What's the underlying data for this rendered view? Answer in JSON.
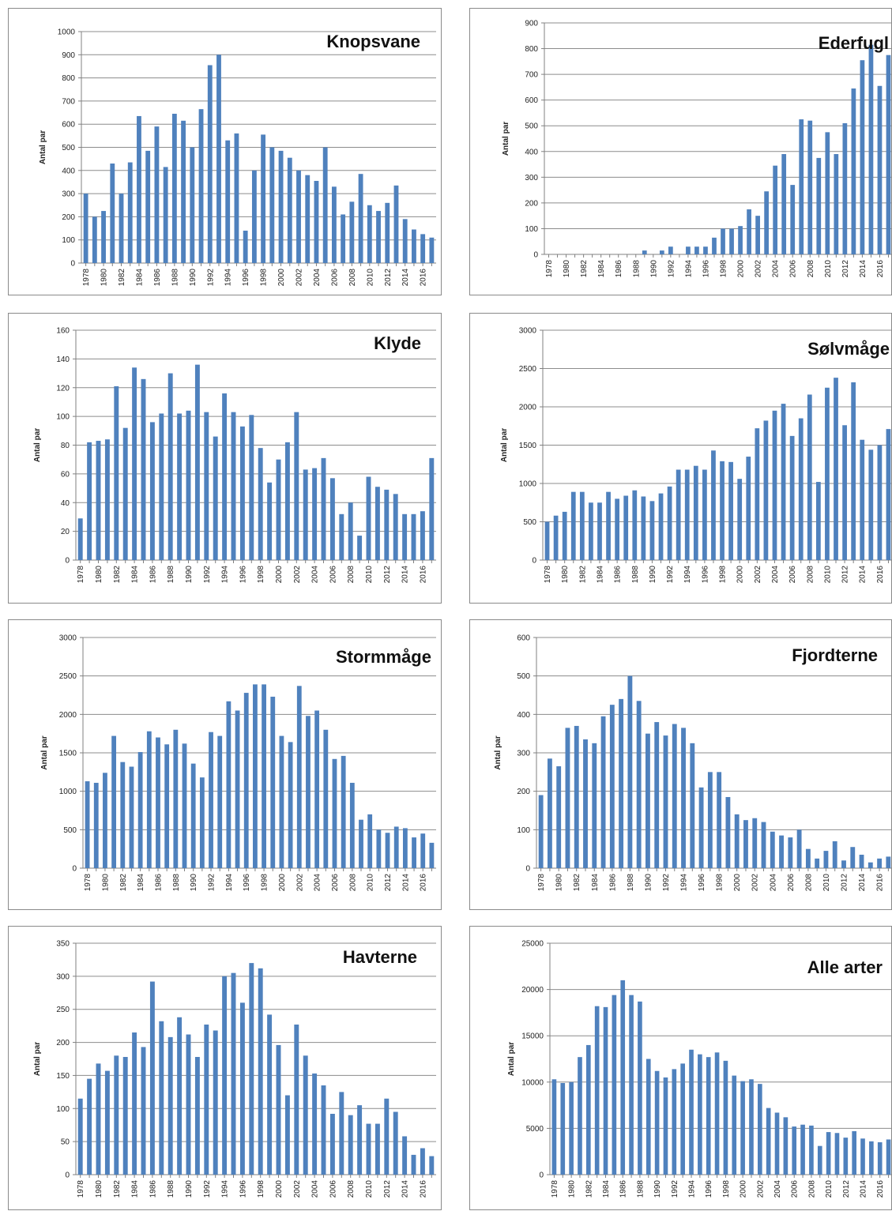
{
  "colors": {
    "bar": "#4f81bd",
    "grid": "#8c8c8c",
    "axis": "#808080",
    "text": "#222222",
    "border": "#8a8a8a"
  },
  "chart_data": [
    {
      "type": "bar",
      "title": "Knopsvane",
      "ylabel": "Antal par",
      "xlabel": "",
      "ylim": [
        0,
        1000
      ],
      "yticks": [
        0,
        100,
        200,
        300,
        400,
        500,
        600,
        700,
        800,
        900,
        1000
      ],
      "grid": true,
      "x": [
        1978,
        1979,
        1980,
        1981,
        1982,
        1983,
        1984,
        1985,
        1986,
        1987,
        1988,
        1989,
        1990,
        1991,
        1992,
        1993,
        1994,
        1995,
        1996,
        1997,
        1998,
        1999,
        2000,
        2001,
        2002,
        2003,
        2004,
        2005,
        2006,
        2007,
        2008,
        2009,
        2010,
        2011,
        2012,
        2013,
        2014,
        2015,
        2016,
        2017
      ],
      "xticklabels": [
        "1978",
        "1980",
        "1982",
        "1984",
        "1986",
        "1988",
        "1990",
        "1992",
        "1994",
        "1996",
        "1998",
        "2000",
        "2002",
        "2004",
        "2006",
        "2008",
        "2010",
        "2012",
        "2014",
        "2016"
      ],
      "values": [
        300,
        200,
        225,
        430,
        300,
        435,
        635,
        485,
        590,
        415,
        645,
        615,
        500,
        665,
        855,
        900,
        530,
        560,
        140,
        400,
        555,
        500,
        485,
        455,
        400,
        380,
        355,
        500,
        330,
        210,
        265,
        385,
        250,
        225,
        260,
        335,
        190,
        145,
        125,
        110
      ]
    },
    {
      "type": "bar",
      "title": "Ederfugl",
      "ylabel": "Antal par",
      "xlabel": "",
      "ylim": [
        0,
        900
      ],
      "yticks": [
        0,
        100,
        200,
        300,
        400,
        500,
        600,
        700,
        800,
        900
      ],
      "grid": true,
      "x": [
        1978,
        1979,
        1980,
        1981,
        1982,
        1983,
        1984,
        1985,
        1986,
        1987,
        1988,
        1989,
        1990,
        1991,
        1992,
        1993,
        1994,
        1995,
        1996,
        1997,
        1998,
        1999,
        2000,
        2001,
        2002,
        2003,
        2004,
        2005,
        2006,
        2007,
        2008,
        2009,
        2010,
        2011,
        2012,
        2013,
        2014,
        2015,
        2016,
        2017
      ],
      "xticklabels": [
        "1978",
        "1980",
        "1982",
        "1984",
        "1986",
        "1988",
        "1990",
        "1992",
        "1994",
        "1996",
        "1998",
        "2000",
        "2002",
        "2004",
        "2006",
        "2008",
        "2010",
        "2012",
        "2014",
        "2016"
      ],
      "values": [
        0,
        0,
        0,
        0,
        0,
        0,
        0,
        0,
        0,
        0,
        0,
        15,
        0,
        15,
        30,
        0,
        30,
        30,
        30,
        65,
        100,
        100,
        110,
        175,
        150,
        245,
        345,
        390,
        270,
        525,
        520,
        375,
        475,
        390,
        510,
        645,
        755,
        815,
        655,
        775
      ]
    },
    {
      "type": "bar",
      "title": "Klyde",
      "ylabel": "Antal par",
      "xlabel": "",
      "ylim": [
        0,
        160
      ],
      "yticks": [
        0,
        20,
        40,
        60,
        80,
        100,
        120,
        140,
        160
      ],
      "grid": true,
      "x": [
        1978,
        1979,
        1980,
        1981,
        1982,
        1983,
        1984,
        1985,
        1986,
        1987,
        1988,
        1989,
        1990,
        1991,
        1992,
        1993,
        1994,
        1995,
        1996,
        1997,
        1998,
        1999,
        2000,
        2001,
        2002,
        2003,
        2004,
        2005,
        2006,
        2007,
        2008,
        2009,
        2010,
        2011,
        2012,
        2013,
        2014,
        2015,
        2016,
        2017
      ],
      "xticklabels": [
        "1978",
        "1980",
        "1982",
        "1984",
        "1986",
        "1988",
        "1990",
        "1992",
        "1994",
        "1996",
        "1998",
        "2000",
        "2002",
        "2004",
        "2006",
        "2008",
        "2010",
        "2012",
        "2014",
        "2016"
      ],
      "values": [
        29,
        82,
        83,
        84,
        121,
        92,
        134,
        126,
        96,
        102,
        130,
        102,
        104,
        136,
        103,
        86,
        116,
        103,
        93,
        101,
        78,
        54,
        70,
        82,
        103,
        63,
        64,
        71,
        57,
        32,
        40,
        17,
        58,
        51,
        49,
        46,
        32,
        32,
        34,
        71
      ]
    },
    {
      "type": "bar",
      "title": "Sølvmåge",
      "ylabel": "Antal par",
      "xlabel": "",
      "ylim": [
        0,
        3000
      ],
      "yticks": [
        0,
        500,
        1000,
        1500,
        2000,
        2500,
        3000
      ],
      "grid": true,
      "x": [
        1978,
        1979,
        1980,
        1981,
        1982,
        1983,
        1984,
        1985,
        1986,
        1987,
        1988,
        1989,
        1990,
        1991,
        1992,
        1993,
        1994,
        1995,
        1996,
        1997,
        1998,
        1999,
        2000,
        2001,
        2002,
        2003,
        2004,
        2005,
        2006,
        2007,
        2008,
        2009,
        2010,
        2011,
        2012,
        2013,
        2014,
        2015,
        2016,
        2017
      ],
      "xticklabels": [
        "1978",
        "1980",
        "1982",
        "1984",
        "1986",
        "1988",
        "1990",
        "1992",
        "1994",
        "1996",
        "1998",
        "2000",
        "2002",
        "2004",
        "2006",
        "2008",
        "2010",
        "2012",
        "2014",
        "2016"
      ],
      "values": [
        500,
        580,
        630,
        890,
        890,
        750,
        750,
        890,
        800,
        840,
        910,
        830,
        770,
        870,
        960,
        1180,
        1180,
        1230,
        1180,
        1430,
        1290,
        1280,
        1060,
        1350,
        1720,
        1820,
        1950,
        2040,
        1620,
        1850,
        2160,
        1020,
        2250,
        2380,
        1760,
        2320,
        1570,
        1440,
        1500,
        1710
      ]
    },
    {
      "type": "bar",
      "title": "Stormmåge",
      "ylabel": "Antal par",
      "xlabel": "",
      "ylim": [
        0,
        3000
      ],
      "yticks": [
        0,
        500,
        1000,
        1500,
        2000,
        2500,
        3000
      ],
      "grid": true,
      "x": [
        1978,
        1979,
        1980,
        1981,
        1982,
        1983,
        1984,
        1985,
        1986,
        1987,
        1988,
        1989,
        1990,
        1991,
        1992,
        1993,
        1994,
        1995,
        1996,
        1997,
        1998,
        1999,
        2000,
        2001,
        2002,
        2003,
        2004,
        2005,
        2006,
        2007,
        2008,
        2009,
        2010,
        2011,
        2012,
        2013,
        2014,
        2015,
        2016,
        2017
      ],
      "xticklabels": [
        "1978",
        "1980",
        "1982",
        "1984",
        "1986",
        "1988",
        "1990",
        "1992",
        "1994",
        "1996",
        "1998",
        "2000",
        "2002",
        "2004",
        "2006",
        "2008",
        "2010",
        "2012",
        "2014",
        "2016"
      ],
      "values": [
        1130,
        1110,
        1240,
        1720,
        1380,
        1320,
        1510,
        1780,
        1700,
        1610,
        1800,
        1620,
        1360,
        1180,
        1770,
        1720,
        2170,
        2050,
        2280,
        2390,
        2390,
        2230,
        1720,
        1640,
        2370,
        1980,
        2050,
        1800,
        1420,
        1460,
        1110,
        630,
        700,
        500,
        460,
        540,
        520,
        400,
        450,
        330
      ]
    },
    {
      "type": "bar",
      "title": "Fjordterne",
      "ylabel": "Antal par",
      "xlabel": "",
      "ylim": [
        0,
        600
      ],
      "yticks": [
        0,
        100,
        200,
        300,
        400,
        500,
        600
      ],
      "grid": true,
      "x": [
        1978,
        1979,
        1980,
        1981,
        1982,
        1983,
        1984,
        1985,
        1986,
        1987,
        1988,
        1989,
        1990,
        1991,
        1992,
        1993,
        1994,
        1995,
        1996,
        1997,
        1998,
        1999,
        2000,
        2001,
        2002,
        2003,
        2004,
        2005,
        2006,
        2007,
        2008,
        2009,
        2010,
        2011,
        2012,
        2013,
        2014,
        2015,
        2016,
        2017
      ],
      "xticklabels": [
        "1978",
        "1980",
        "1982",
        "1984",
        "1986",
        "1988",
        "1990",
        "1992",
        "1994",
        "1996",
        "1998",
        "2000",
        "2002",
        "2004",
        "2006",
        "2008",
        "2010",
        "2012",
        "2014",
        "2016"
      ],
      "values": [
        190,
        285,
        265,
        365,
        370,
        335,
        325,
        395,
        425,
        440,
        500,
        435,
        350,
        380,
        345,
        375,
        365,
        325,
        210,
        250,
        250,
        185,
        140,
        125,
        130,
        120,
        95,
        85,
        80,
        100,
        50,
        25,
        45,
        70,
        20,
        55,
        35,
        15,
        25,
        30
      ]
    },
    {
      "type": "bar",
      "title": "Havterne",
      "ylabel": "Antal par",
      "xlabel": "",
      "ylim": [
        0,
        350
      ],
      "yticks": [
        0,
        50,
        100,
        150,
        200,
        250,
        300,
        350
      ],
      "grid": true,
      "x": [
        1978,
        1979,
        1980,
        1981,
        1982,
        1983,
        1984,
        1985,
        1986,
        1987,
        1988,
        1989,
        1990,
        1991,
        1992,
        1993,
        1994,
        1995,
        1996,
        1997,
        1998,
        1999,
        2000,
        2001,
        2002,
        2003,
        2004,
        2005,
        2006,
        2007,
        2008,
        2009,
        2010,
        2011,
        2012,
        2013,
        2014,
        2015,
        2016,
        2017
      ],
      "xticklabels": [
        "1978",
        "1980",
        "1982",
        "1984",
        "1986",
        "1988",
        "1990",
        "1992",
        "1994",
        "1996",
        "1998",
        "2000",
        "2002",
        "2004",
        "2006",
        "2008",
        "2010",
        "2012",
        "2014",
        "2016"
      ],
      "values": [
        115,
        145,
        168,
        157,
        180,
        178,
        215,
        193,
        292,
        232,
        208,
        238,
        212,
        178,
        227,
        218,
        300,
        305,
        260,
        320,
        312,
        242,
        196,
        120,
        227,
        180,
        153,
        135,
        92,
        125,
        90,
        105,
        77,
        77,
        115,
        95,
        58,
        30,
        40,
        28
      ]
    },
    {
      "type": "bar",
      "title": "Alle arter",
      "ylabel": "Antal par",
      "xlabel": "",
      "ylim": [
        0,
        25000
      ],
      "yticks": [
        0,
        5000,
        10000,
        15000,
        20000,
        25000
      ],
      "grid": true,
      "x": [
        1978,
        1979,
        1980,
        1981,
        1982,
        1983,
        1984,
        1985,
        1986,
        1987,
        1988,
        1989,
        1990,
        1991,
        1992,
        1993,
        1994,
        1995,
        1996,
        1997,
        1998,
        1999,
        2000,
        2001,
        2002,
        2003,
        2004,
        2005,
        2006,
        2007,
        2008,
        2009,
        2010,
        2011,
        2012,
        2013,
        2014,
        2015,
        2016,
        2017
      ],
      "xticklabels": [
        "1978",
        "1980",
        "1982",
        "1984",
        "1986",
        "1988",
        "1990",
        "1992",
        "1994",
        "1996",
        "1998",
        "2000",
        "2002",
        "2004",
        "2006",
        "2008",
        "2010",
        "2012",
        "2014",
        "2016"
      ],
      "values": [
        10300,
        9900,
        10000,
        12700,
        14000,
        18200,
        18100,
        19400,
        21000,
        19400,
        18700,
        12500,
        11200,
        10500,
        11400,
        12000,
        13500,
        13000,
        12700,
        13200,
        12300,
        10700,
        10100,
        10300,
        9800,
        7200,
        6700,
        6200,
        5200,
        5400,
        5300,
        3100,
        4600,
        4500,
        4000,
        4700,
        3900,
        3600,
        3500,
        3800
      ]
    }
  ]
}
